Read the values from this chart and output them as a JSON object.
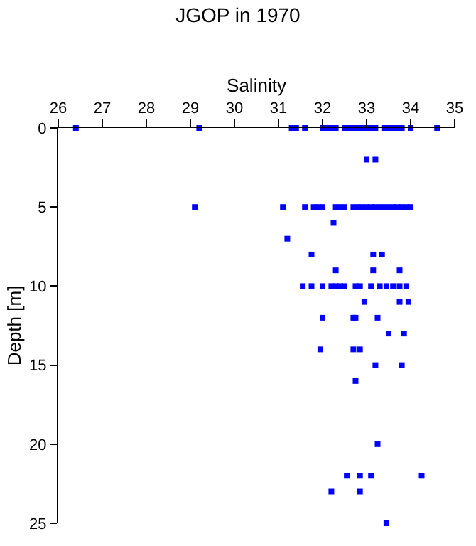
{
  "chart_data": {
    "type": "scatter",
    "title": "JGOP in 1970",
    "xlabel": "Salinity",
    "ylabel": "Depth [m]",
    "x": [
      26.4,
      29.2,
      31.3,
      31.4,
      31.6,
      32.0,
      32.1,
      32.2,
      32.3,
      32.5,
      32.6,
      32.7,
      32.8,
      32.9,
      33.0,
      33.1,
      33.2,
      33.4,
      33.5,
      33.6,
      33.7,
      33.8,
      34.0,
      34.6,
      33.0,
      33.2,
      29.1,
      31.1,
      31.6,
      31.8,
      31.9,
      32.0,
      32.3,
      32.4,
      32.5,
      32.7,
      32.8,
      32.9,
      33.0,
      33.1,
      33.2,
      33.3,
      33.4,
      33.5,
      33.6,
      33.7,
      33.8,
      33.9,
      34.0,
      32.25,
      31.2,
      31.75,
      33.15,
      33.35,
      32.3,
      33.15,
      33.75,
      31.55,
      31.75,
      32.0,
      32.2,
      32.3,
      32.4,
      32.5,
      32.75,
      32.85,
      33.1,
      33.3,
      33.45,
      33.6,
      33.75,
      33.9,
      32.95,
      33.75,
      33.95,
      32.0,
      32.7,
      32.75,
      33.25,
      33.5,
      33.85,
      31.95,
      32.7,
      32.85,
      33.2,
      33.8,
      32.75,
      33.25,
      32.55,
      32.85,
      33.1,
      34.25,
      32.2,
      32.85,
      33.45
    ],
    "values": [
      0,
      0,
      0,
      0,
      0,
      0,
      0,
      0,
      0,
      0,
      0,
      0,
      0,
      0,
      0,
      0,
      0,
      0,
      0,
      0,
      0,
      0,
      0,
      0,
      2,
      2,
      5,
      5,
      5,
      5,
      5,
      5,
      5,
      5,
      5,
      5,
      5,
      5,
      5,
      5,
      5,
      5,
      5,
      5,
      5,
      5,
      5,
      5,
      5,
      6,
      7,
      8,
      8,
      8,
      9,
      9,
      9,
      10,
      10,
      10,
      10,
      10,
      10,
      10,
      10,
      10,
      10,
      10,
      10,
      10,
      10,
      10,
      11,
      11,
      11,
      12,
      12,
      12,
      12,
      13,
      13,
      14,
      14,
      14,
      15,
      15,
      16,
      20,
      22,
      22,
      22,
      22,
      23,
      23,
      25
    ],
    "color": "#0000ff",
    "marker": "square",
    "xlim": [
      26,
      35
    ],
    "xticks": [
      26,
      27,
      28,
      29,
      30,
      31,
      32,
      33,
      34,
      35
    ],
    "ylim": [
      25,
      0
    ],
    "yticks": [
      0,
      5,
      10,
      15,
      20,
      25
    ]
  }
}
